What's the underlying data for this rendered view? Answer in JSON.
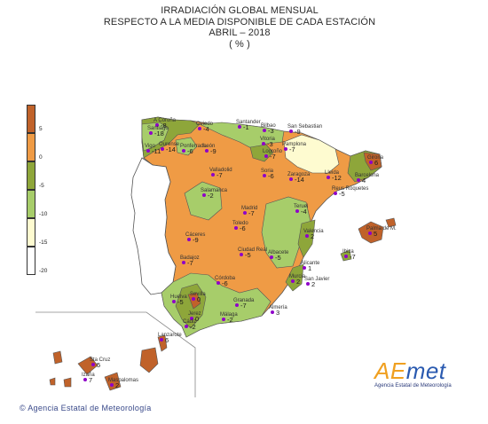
{
  "title": {
    "line1": "IRRADIACIÓN GLOBAL MENSUAL",
    "line2": "RESPECTO A LA MEDIA DISPONIBLE DE CADA ESTACIÓN",
    "line3": "ABRIL – 2018",
    "line4": "( % )"
  },
  "legend": {
    "levels": [
      {
        "label": "5",
        "color": "#c0622a"
      },
      {
        "label": "0",
        "color": "#ef9b45"
      },
      {
        "label": "-5",
        "color": "#8ea63a"
      },
      {
        "label": "-10",
        "color": "#a7cd6a"
      },
      {
        "label": "-15",
        "color": "#fefbd0"
      },
      {
        "label": "-20",
        "color": "#ffffff"
      }
    ]
  },
  "stations": [
    {
      "name": "A Coruña",
      "value": "-8"
    },
    {
      "name": "Santiago",
      "value": "-18"
    },
    {
      "name": "Vigo",
      "value": "-11"
    },
    {
      "name": "Ourense",
      "value": "-14"
    },
    {
      "name": "Ponferrada",
      "value": "-6"
    },
    {
      "name": "León",
      "value": "-9"
    },
    {
      "name": "Oviedo",
      "value": "-4"
    },
    {
      "name": "Santander",
      "value": "-1"
    },
    {
      "name": "Bilbao",
      "value": "-3"
    },
    {
      "name": "San Sebastian",
      "value": "-9"
    },
    {
      "name": "Vitoria",
      "value": "-3"
    },
    {
      "name": "Pamplona",
      "value": "-7"
    },
    {
      "name": "Logroño",
      "value": "-7"
    },
    {
      "name": "Valladolid",
      "value": "-7"
    },
    {
      "name": "Soria",
      "value": "-6"
    },
    {
      "name": "Zaragoza",
      "value": "-14"
    },
    {
      "name": "Lleida",
      "value": "-12"
    },
    {
      "name": "Girona",
      "value": "6"
    },
    {
      "name": "Barcelona",
      "value": "4"
    },
    {
      "name": "Reus Roquetes",
      "value": "-5"
    },
    {
      "name": "Salamanca",
      "value": "-2"
    },
    {
      "name": "Madrid",
      "value": "-7"
    },
    {
      "name": "Toledo",
      "value": "-6"
    },
    {
      "name": "Teruel",
      "value": "-4"
    },
    {
      "name": "Cáceres",
      "value": "-9"
    },
    {
      "name": "Ciudad Real",
      "value": "-5"
    },
    {
      "name": "Valencia",
      "value": "2"
    },
    {
      "name": "Palma de M.",
      "value": "5"
    },
    {
      "name": "Badajoz",
      "value": "-7"
    },
    {
      "name": "Albacete",
      "value": "-5"
    },
    {
      "name": "Alicante",
      "value": "1"
    },
    {
      "name": "Ibiza",
      "value": "-7"
    },
    {
      "name": "Córdoba",
      "value": "-6"
    },
    {
      "name": "Murcia",
      "value": "2"
    },
    {
      "name": "San Javier",
      "value": "2"
    },
    {
      "name": "Huelva",
      "value": "-5"
    },
    {
      "name": "Sevilla",
      "value": "0"
    },
    {
      "name": "Granada",
      "value": "-7"
    },
    {
      "name": "Almería",
      "value": "3"
    },
    {
      "name": "Jerez",
      "value": "0"
    },
    {
      "name": "Cádiz",
      "value": "-2"
    },
    {
      "name": "Málaga",
      "value": "-2"
    },
    {
      "name": "Lanzarote",
      "value": "6"
    },
    {
      "name": "Sta Cruz",
      "value": "5"
    },
    {
      "name": "Izaña",
      "value": "7"
    },
    {
      "name": "Maspalomas",
      "value": "2"
    }
  ],
  "logo": {
    "word_a": "AE",
    "word_b": "met",
    "subtitle": "Agencia Estatal de Meteorología"
  },
  "copyright": "© Agencia Estatal de Meteorología"
}
